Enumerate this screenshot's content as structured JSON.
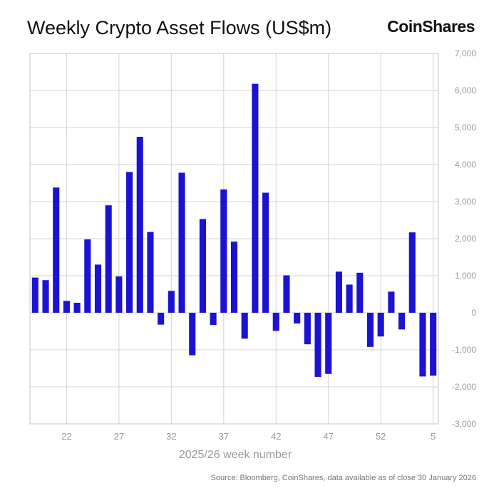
{
  "header": {
    "title": "Weekly Crypto Asset Flows (US$m)",
    "brand": "CoinShares"
  },
  "footer": {
    "source": "Source: Bloomberg, CoinShares, data available as of close 30 January 2026"
  },
  "colors": {
    "bar": "#1c12d4",
    "grid": "#d4d4d4",
    "frame": "#c4c4c4"
  },
  "chart_data": {
    "type": "bar",
    "title": "Weekly Crypto Asset Flows (US$m)",
    "xlabel": "2025/26 week number",
    "ylabel": "",
    "ylim": [
      -3000,
      7000
    ],
    "y_ticks": [
      7000,
      6000,
      5000,
      4000,
      3000,
      2000,
      1000,
      0,
      -1000,
      -2000,
      -3000
    ],
    "y_tick_labels": [
      "7,000",
      "6,000",
      "5,000",
      "4,000",
      "3,000",
      "2,000",
      "1,000",
      "0",
      "-1,000",
      "-2,000",
      "-3,000"
    ],
    "x_tick_labels": [
      "22",
      "27",
      "32",
      "37",
      "42",
      "47",
      "52",
      "5"
    ],
    "y_axis_side": "right",
    "grid": true,
    "categories": [
      "19",
      "20",
      "21",
      "22",
      "23",
      "24",
      "25",
      "26",
      "27",
      "28",
      "29",
      "30",
      "31",
      "32",
      "33",
      "34",
      "35",
      "36",
      "37",
      "38",
      "39",
      "40",
      "41",
      "42",
      "43",
      "44",
      "45",
      "46",
      "47",
      "48",
      "49",
      "50",
      "51",
      "52",
      "1",
      "2",
      "3",
      "4",
      "5"
    ],
    "values": [
      950,
      880,
      3380,
      320,
      270,
      1980,
      1300,
      2900,
      980,
      3800,
      4750,
      2180,
      -320,
      590,
      3780,
      -1150,
      2530,
      -330,
      3330,
      1920,
      -700,
      6180,
      3240,
      -490,
      1010,
      -290,
      -850,
      -1730,
      -1650,
      1110,
      760,
      1080,
      -920,
      -640,
      570,
      -450,
      2170,
      -1720,
      -1700
    ]
  }
}
